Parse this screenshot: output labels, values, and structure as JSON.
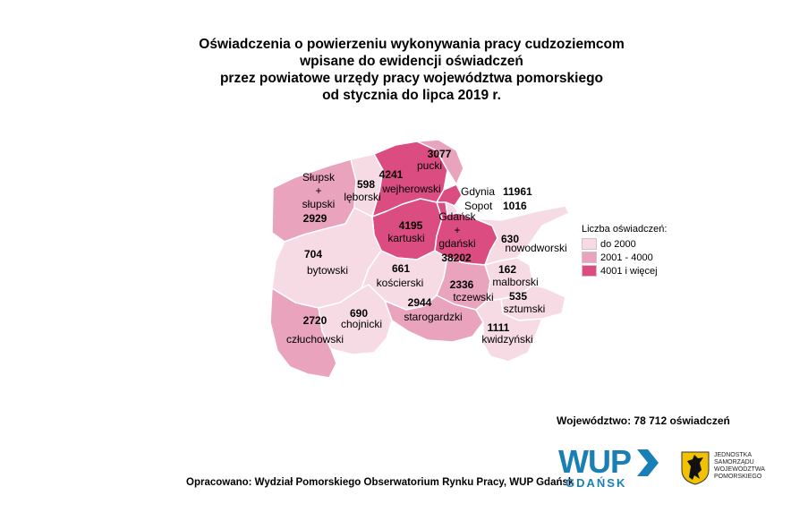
{
  "title": {
    "line1": "Oświadczenia o powierzeniu wykonywania pracy cudzoziemcom",
    "line2": "wpisane do ewidencji oświadczeń",
    "line3": "przez powiatowe urzędy pracy województwa pomorskiego",
    "line4": "od stycznia do lipca 2019 r."
  },
  "legend": {
    "title": "Liczba oświadczeń:",
    "items": [
      {
        "label": "do 2000",
        "color": "#f6dbe5"
      },
      {
        "label": "2001 - 4000",
        "color": "#e9a3bd"
      },
      {
        "label": "4001 i więcej",
        "color": "#db4c80"
      }
    ]
  },
  "colors": {
    "low": "#f6dbe5",
    "mid": "#e9a3bd",
    "high": "#db4c80",
    "border": "#ffffff"
  },
  "districts": {
    "slupski": {
      "label": "Słupsk\n+\nsłupski",
      "value": "2929"
    },
    "leborski": {
      "label": "lęborski",
      "value": "598"
    },
    "wejherowski": {
      "label": "wejherowski",
      "value": "4241"
    },
    "pucki": {
      "label": "pucki",
      "value": "3077"
    },
    "gdynia": {
      "label": "Gdynia",
      "value": "11961"
    },
    "sopot": {
      "label": "Sopot",
      "value": "1016"
    },
    "kartuski": {
      "label": "kartuski",
      "value": "4195"
    },
    "gdanski": {
      "label": "Gdańsk\n+\ngdański",
      "value": "38202"
    },
    "nowodworski": {
      "label": "nowodworski",
      "value": "630"
    },
    "bytowski": {
      "label": "bytowski",
      "value": "704"
    },
    "koscierski": {
      "label": "kościerski",
      "value": "661"
    },
    "malborski": {
      "label": "malborski",
      "value": "162"
    },
    "tczewski": {
      "label": "tczewski",
      "value": "2336"
    },
    "sztumski": {
      "label": "sztumski",
      "value": "535"
    },
    "starogardzki": {
      "label": "starogardzki",
      "value": "2944"
    },
    "czluchowski": {
      "label": "człuchowski",
      "value": "2720"
    },
    "chojnicki": {
      "label": "chojnicki",
      "value": "690"
    },
    "kwidzynski": {
      "label": "kwidzyński",
      "value": "1111"
    }
  },
  "total": "Województwo: 78 712 oświadczeń",
  "source": "Opracowano: Wydział Pomorskiego Obserwatorium Rynku Pracy, WUP Gdańsk",
  "logo_wup": {
    "main": "WUP",
    "sub": "GDAŃSK"
  },
  "logo_js": {
    "line1": "JEDNOSTKA",
    "line2": "SAMORZĄDU",
    "line3": "WOJEWÓDZTWA",
    "line4": "POMORSKIEGO"
  }
}
